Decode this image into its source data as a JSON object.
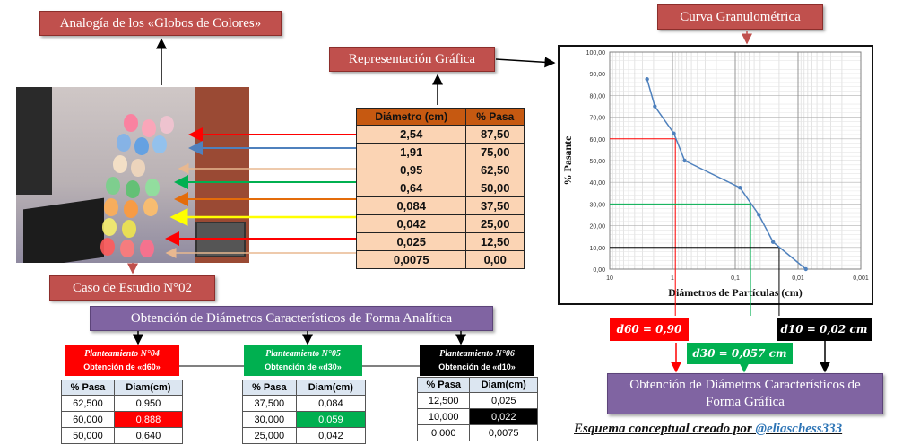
{
  "labels": {
    "analogy": "Analogía de los «Globos de Colores»",
    "graphic_rep": "Representación Gráfica",
    "curve_title": "Curva Granulométrica",
    "case_study": "Caso de Estudio N°02",
    "analytic_title": "Obtención de Diámetros Característicos de Forma Analítica",
    "graphic_title": "Obtención de Diámetros Característicos de Forma Gráfica",
    "credit_prefix": "Esquema  conceptual creado por ",
    "credit_handle": "@eliaschess333"
  },
  "main_table": {
    "headers": [
      "Diámetro (cm)",
      "% Pasa"
    ],
    "rows": [
      [
        "2,54",
        "87,50"
      ],
      [
        "1,91",
        "75,00"
      ],
      [
        "0,95",
        "62,50"
      ],
      [
        "0,64",
        "50,00"
      ],
      [
        "0,084",
        "37,50"
      ],
      [
        "0,042",
        "25,00"
      ],
      [
        "0,025",
        "12,50"
      ],
      [
        "0,0075",
        "0,00"
      ]
    ]
  },
  "results": {
    "d60": "d60 = 0,90",
    "d30": "d30 = 0,057 cm",
    "d10": "d10 = 0,02 cm"
  },
  "approaches": [
    {
      "title": "Planteamiento N°04",
      "subtitle": "Obtención de «d60»",
      "color": "#ff0000",
      "headers": [
        "% Pasa",
        "Diam(cm)"
      ],
      "rows": [
        [
          "62,500",
          "0,950"
        ],
        [
          "60,000",
          "0,888"
        ],
        [
          "50,000",
          "0,640"
        ]
      ]
    },
    {
      "title": "Planteamiento N°05",
      "subtitle": "Obtención de «d30»",
      "color": "#00b050",
      "headers": [
        "% Pasa",
        "Diam(cm)"
      ],
      "rows": [
        [
          "37,500",
          "0,084"
        ],
        [
          "30,000",
          "0,059"
        ],
        [
          "25,000",
          "0,042"
        ]
      ]
    },
    {
      "title": "Planteamiento N°06",
      "subtitle": "Obtención de «d10»",
      "color": "#000000",
      "headers": [
        "% Pasa",
        "Diam(cm)"
      ],
      "rows": [
        [
          "12,500",
          "0,025"
        ],
        [
          "10,000",
          "0,022"
        ],
        [
          "0,000",
          "0,0075"
        ]
      ]
    }
  ],
  "chart_data": {
    "type": "line",
    "x_scale": "log",
    "x_reversed": true,
    "xlabel": "Diámetros de Partículas (cm)",
    "ylabel": "% Pasante",
    "xlim": [
      10,
      0.001
    ],
    "ylim": [
      0,
      100
    ],
    "x_ticks": [
      "10",
      "1",
      "0,1",
      "0,01",
      "0,001"
    ],
    "y_ticks": [
      "0,00",
      "10,00",
      "20,00",
      "30,00",
      "40,00",
      "50,00",
      "60,00",
      "70,00",
      "80,00",
      "90,00",
      "100,00"
    ],
    "grid": true,
    "x": [
      2.54,
      1.91,
      0.95,
      0.64,
      0.084,
      0.042,
      0.025,
      0.0075
    ],
    "y": [
      87.5,
      75.0,
      62.5,
      50.0,
      37.5,
      25.0,
      12.5,
      0.0
    ],
    "series_color": "#4f81bd",
    "guides": [
      {
        "y": 60,
        "x": 0.9,
        "color": "#ff0000"
      },
      {
        "y": 30,
        "x": 0.057,
        "color": "#00b050"
      },
      {
        "y": 10,
        "x": 0.02,
        "color": "#000000"
      }
    ]
  }
}
